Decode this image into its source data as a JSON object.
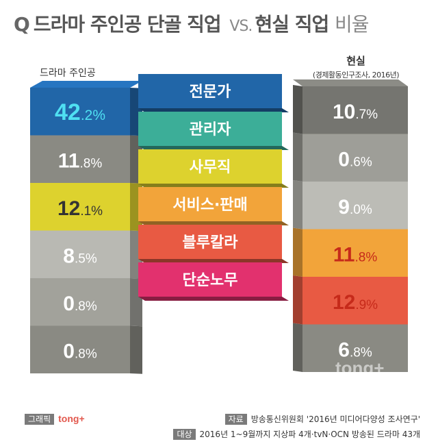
{
  "title": {
    "q": "Q",
    "part1": "드라마 주인공 단골 직업",
    "vs": "VS.",
    "part2": "현실 직업",
    "part3": "비율"
  },
  "headers": {
    "left": "드라마 주인공",
    "right": "현실",
    "right_sub": "(경제활동인구조사, 2016년)"
  },
  "chart_data": {
    "type": "table",
    "categories": [
      "전문가",
      "관리자",
      "사무직",
      "서비스·판매",
      "블루칼라",
      "단순노무"
    ],
    "series": [
      {
        "name": "드라마 주인공",
        "values": [
          42.2,
          11.8,
          12.1,
          8.5,
          0.8,
          0.8
        ]
      },
      {
        "name": "현실",
        "values": [
          10.7,
          0.6,
          9.0,
          11.8,
          12.9,
          6.8
        ]
      }
    ],
    "category_colors": [
      "#2166a8",
      "#3cae98",
      "#ddd22e",
      "#f2a43a",
      "#e85a43",
      "#e2316e"
    ],
    "left_colors": [
      "#2166a8",
      "#8a8a83",
      "#ddd22e",
      "#b9b9b3",
      "#a2a29b",
      "#8a8a83"
    ],
    "left_text_colors": [
      "#4fe0f2",
      "#ffffff",
      "#333333",
      "#ffffff",
      "#ffffff",
      "#ffffff"
    ],
    "right_colors": [
      "#757570",
      "#9e9e98",
      "#bcbcb6",
      "#f2a43a",
      "#e85a43",
      "#8a8a83"
    ],
    "right_text_colors": [
      "#ffffff",
      "#ffffff",
      "#ffffff",
      "#c62a1a",
      "#c62a1a",
      "#ffffff"
    ]
  },
  "watermark": "tong+",
  "footer": {
    "graphic_tag": "그래픽",
    "logo": "tong+",
    "source_tag": "자료",
    "source": "방송통신위원회 '2016년 미디어다양성 조사연구'",
    "target_tag": "대상",
    "target": "2016년 1~9월까지 지상파 4개·tvN·OCN 방송된 드라마 43개"
  }
}
